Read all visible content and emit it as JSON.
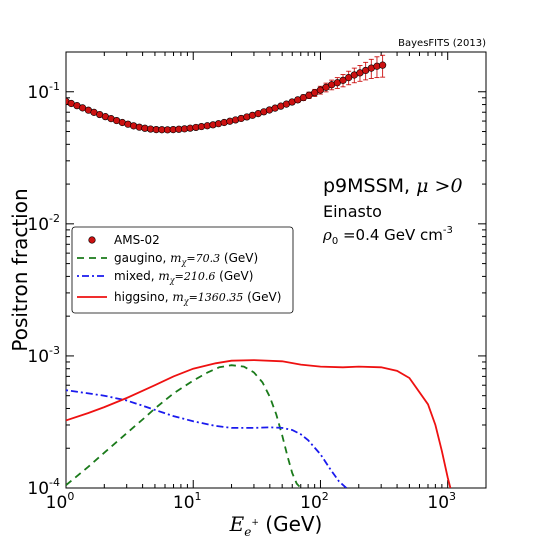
{
  "chart_data": {
    "type": "line",
    "source_label": "BayesFITS (2013)",
    "xscale": "log",
    "yscale": "log",
    "xlim": [
      1,
      2000
    ],
    "ylim": [
      0.0001,
      0.2
    ],
    "xlabel": {
      "symbol": "E",
      "subscript": "e",
      "superscript": "+",
      "unit": " (GeV)"
    },
    "ylabel": "Positron fraction",
    "x_ticks": [
      {
        "value": 1,
        "base": "10",
        "exp": "0"
      },
      {
        "value": 10,
        "base": "10",
        "exp": "1"
      },
      {
        "value": 100,
        "base": "10",
        "exp": "2"
      },
      {
        "value": 1000,
        "base": "10",
        "exp": "3"
      }
    ],
    "y_ticks": [
      {
        "value": 0.0001,
        "base": "10",
        "exp": "-4"
      },
      {
        "value": 0.001,
        "base": "10",
        "exp": "-3"
      },
      {
        "value": 0.01,
        "base": "10",
        "exp": "-2"
      },
      {
        "value": 0.1,
        "base": "10",
        "exp": "-1"
      }
    ],
    "annotations": {
      "model": "p9MSSM, ",
      "condition": "μ >0",
      "profile": "Einasto",
      "density_symbol": "ρ",
      "density_sub": "0",
      "density_value": " =0.4 GeV cm",
      "density_exp": "-3"
    },
    "legend": [
      {
        "label": "AMS-02",
        "mass": "",
        "style": "marker",
        "color": "#cc1111"
      },
      {
        "label": "gaugino, ",
        "mass": "=70.3",
        "unit": " (GeV)",
        "style": "dashed",
        "color": "#1a7a1a"
      },
      {
        "label": "mixed, ",
        "mass": "=210.6",
        "unit": " (GeV)",
        "style": "dashdot",
        "color": "#1a1aee"
      },
      {
        "label": "higgsino, ",
        "mass": "=1360.35",
        "unit": " (GeV)",
        "style": "solid",
        "color": "#ee1111"
      }
    ],
    "legend_mass_symbol": "m",
    "legend_mass_sub": "χ",
    "series": [
      {
        "name": "AMS-02",
        "kind": "points",
        "color": "#cc1111",
        "x": [
          1.0,
          1.1,
          1.22,
          1.35,
          1.5,
          1.66,
          1.84,
          2.04,
          2.26,
          2.5,
          2.77,
          3.07,
          3.4,
          3.77,
          4.17,
          4.62,
          5.12,
          5.67,
          6.28,
          6.96,
          7.71,
          8.54,
          9.46,
          10.5,
          11.6,
          12.9,
          14.3,
          15.8,
          17.5,
          19.4,
          21.5,
          23.8,
          26.4,
          29.2,
          32.4,
          35.9,
          39.7,
          44.0,
          48.8,
          54.0,
          59.8,
          66.3,
          73.4,
          81.3,
          90.1,
          99.8,
          110.6,
          122.5,
          135.7,
          150.4,
          166.6,
          184.5,
          204.4,
          226.5,
          250.9,
          278.0,
          308.0
        ],
        "y": [
          0.0845,
          0.0815,
          0.0785,
          0.0755,
          0.0725,
          0.0698,
          0.0672,
          0.0648,
          0.0626,
          0.0605,
          0.0585,
          0.0568,
          0.0552,
          0.0539,
          0.0529,
          0.0522,
          0.0517,
          0.0516,
          0.0515,
          0.0517,
          0.052,
          0.0524,
          0.053,
          0.0537,
          0.0545,
          0.0553,
          0.0562,
          0.0573,
          0.0585,
          0.0598,
          0.0612,
          0.0628,
          0.0645,
          0.0663,
          0.0683,
          0.0705,
          0.0728,
          0.0752,
          0.0778,
          0.0806,
          0.0836,
          0.0868,
          0.0903,
          0.0941,
          0.0982,
          0.103,
          0.108,
          0.113,
          0.117,
          0.122,
          0.128,
          0.134,
          0.139,
          0.145,
          0.151,
          0.156,
          0.159
        ],
        "err": [
          0.0008,
          0.0008,
          0.0008,
          0.0007,
          0.0007,
          0.0007,
          0.0007,
          0.0006,
          0.0006,
          0.0006,
          0.0006,
          0.0006,
          0.0005,
          0.0005,
          0.0005,
          0.0005,
          0.0005,
          0.0005,
          0.0005,
          0.0005,
          0.0005,
          0.0005,
          0.0005,
          0.0005,
          0.0006,
          0.0006,
          0.0007,
          0.0007,
          0.0008,
          0.0009,
          0.001,
          0.0011,
          0.0012,
          0.0014,
          0.0016,
          0.0018,
          0.002,
          0.0023,
          0.0026,
          0.003,
          0.0034,
          0.0039,
          0.0045,
          0.0052,
          0.006,
          0.007,
          0.0082,
          0.0095,
          0.011,
          0.013,
          0.015,
          0.017,
          0.019,
          0.022,
          0.025,
          0.028,
          0.03
        ]
      },
      {
        "name": "gaugino",
        "kind": "line",
        "dash": "7,5",
        "color": "#1a7a1a",
        "x": [
          1.0,
          1.5,
          2.0,
          3.0,
          4.0,
          5.0,
          7.0,
          10.0,
          13.0,
          16.0,
          20.0,
          25.0,
          30.0,
          35.0,
          40.0,
          45.0,
          50.0,
          55.0,
          60.0,
          65.0,
          70.0
        ],
        "y": [
          0.000105,
          0.000145,
          0.000185,
          0.00026,
          0.00033,
          0.0004,
          0.00052,
          0.00065,
          0.00075,
          0.00082,
          0.00085,
          0.00083,
          0.00075,
          0.00063,
          0.00049,
          0.00036,
          0.00025,
          0.000175,
          0.00013,
          0.000108,
          0.0001
        ]
      },
      {
        "name": "mixed",
        "kind": "line",
        "dash": "2,3,7,3",
        "color": "#1a1aee",
        "x": [
          1.0,
          1.5,
          2.0,
          3.0,
          4.0,
          5.0,
          7.0,
          10.0,
          15.0,
          20.0,
          30.0,
          40.0,
          50.0,
          60.0,
          70.0,
          80.0,
          100.0,
          120.0,
          140.0,
          160.0
        ],
        "y": [
          0.00055,
          0.00052,
          0.0005,
          0.00046,
          0.00042,
          0.00039,
          0.00035,
          0.00032,
          0.000295,
          0.000285,
          0.000285,
          0.000288,
          0.000285,
          0.000275,
          0.000255,
          0.00023,
          0.00018,
          0.000138,
          0.000112,
          0.0001
        ]
      },
      {
        "name": "higgsino",
        "kind": "line",
        "dash": "",
        "color": "#ee1111",
        "x": [
          1.0,
          1.5,
          2.0,
          3.0,
          5.0,
          7.0,
          10.0,
          15.0,
          20.0,
          30.0,
          50.0,
          70.0,
          100.0,
          150.0,
          200.0,
          300.0,
          400.0,
          500.0,
          700.0,
          800.0,
          900.0,
          1000.0,
          1050.0
        ],
        "y": [
          0.000325,
          0.00037,
          0.00041,
          0.00048,
          0.0006,
          0.0007,
          0.0008,
          0.00088,
          0.00092,
          0.00093,
          0.00091,
          0.00086,
          0.00083,
          0.00082,
          0.00083,
          0.00082,
          0.00077,
          0.00068,
          0.00043,
          0.0003,
          0.00019,
          0.00012,
          0.0001
        ]
      }
    ]
  }
}
